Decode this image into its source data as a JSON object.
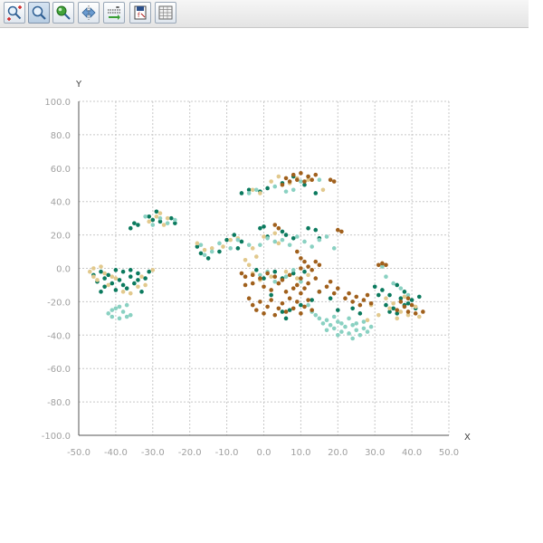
{
  "toolbar": {
    "buttons": [
      {
        "icon": "zoom-xy-icon",
        "active": false
      },
      {
        "icon": "zoom-icon",
        "active": true
      },
      {
        "icon": "pan-icon",
        "active": false
      },
      {
        "icon": "reset-zoom-icon",
        "active": false
      },
      {
        "icon": "axis-settings-icon",
        "active": false
      },
      {
        "icon": "export-icon",
        "active": false
      },
      {
        "icon": "table-icon",
        "active": false
      }
    ]
  },
  "chart_data": {
    "type": "scatter",
    "xlabel": "X",
    "ylabel": "Y",
    "xlim": [
      -50,
      50
    ],
    "ylim": [
      -100,
      100
    ],
    "grid": true,
    "x_ticks": [
      -50,
      -40,
      -30,
      -20,
      -10,
      0,
      10,
      20,
      30,
      40,
      50
    ],
    "y_ticks": [
      -100,
      -80,
      -60,
      -40,
      -20,
      0,
      20,
      40,
      60,
      80,
      100
    ],
    "x_tick_labels": [
      "-50.0",
      "-40.0",
      "-30.0",
      "-20.0",
      "-10.0",
      "0.0",
      "10.0",
      "20.0",
      "30.0",
      "40.0",
      "50.0"
    ],
    "y_tick_labels": [
      "-100.0",
      "-80.0",
      "-60.0",
      "-40.0",
      "-20.0",
      "0.0",
      "20.0",
      "40.0",
      "60.0",
      "80.0",
      "100.0"
    ],
    "series": [
      {
        "color": "#0b7a5e",
        "points": [
          [
            -46,
            -4
          ],
          [
            -45,
            -8
          ],
          [
            -44,
            -2
          ],
          [
            -43,
            -11
          ],
          [
            -43,
            -6
          ],
          [
            -42,
            -4
          ],
          [
            -41,
            -9
          ],
          [
            -40,
            -13
          ],
          [
            -39,
            -7
          ],
          [
            -38,
            -2
          ],
          [
            -37,
            -12
          ],
          [
            -36,
            -5
          ],
          [
            -36,
            -1
          ],
          [
            -35,
            -9
          ],
          [
            -34,
            -3
          ],
          [
            -33,
            -14
          ],
          [
            -32,
            -6
          ],
          [
            -31,
            -2
          ],
          [
            -44,
            -14
          ],
          [
            -40,
            -1
          ],
          [
            -34,
            -7
          ],
          [
            -38,
            -10
          ],
          [
            -36,
            24
          ],
          [
            -35,
            27
          ],
          [
            -34,
            26
          ],
          [
            -31,
            31
          ],
          [
            -30,
            29
          ],
          [
            -29,
            34
          ],
          [
            -28,
            28
          ],
          [
            -25,
            30
          ],
          [
            -24,
            27
          ],
          [
            -18,
            13
          ],
          [
            -17,
            9
          ],
          [
            -15,
            6
          ],
          [
            -12,
            10
          ],
          [
            -10,
            17
          ],
          [
            -8,
            20
          ],
          [
            -7,
            12
          ],
          [
            -6,
            16
          ],
          [
            -6,
            45
          ],
          [
            -4,
            47
          ],
          [
            -1,
            46
          ],
          [
            1,
            48
          ],
          [
            5,
            51
          ],
          [
            8,
            55
          ],
          [
            11,
            50
          ],
          [
            14,
            45
          ],
          [
            -1,
            24
          ],
          [
            0,
            25
          ],
          [
            1,
            19
          ],
          [
            5,
            22
          ],
          [
            6,
            20
          ],
          [
            8,
            18
          ],
          [
            12,
            24
          ],
          [
            14,
            23
          ],
          [
            15,
            18
          ],
          [
            -2,
            -1
          ],
          [
            0,
            -6
          ],
          [
            3,
            -2
          ],
          [
            5,
            -6
          ],
          [
            8,
            -3
          ],
          [
            11,
            -2
          ],
          [
            2,
            -16
          ],
          [
            5,
            -26
          ],
          [
            6,
            -30
          ],
          [
            7,
            -25
          ],
          [
            10,
            -22
          ],
          [
            13,
            -19
          ],
          [
            15,
            -14
          ],
          [
            18,
            -18
          ],
          [
            20,
            -25
          ],
          [
            24,
            -24
          ],
          [
            26,
            -27
          ],
          [
            30,
            -11
          ],
          [
            31,
            -16
          ],
          [
            32,
            -13
          ],
          [
            33,
            -22
          ],
          [
            34,
            -26
          ],
          [
            35,
            -24
          ],
          [
            36,
            -27
          ],
          [
            37,
            -18
          ],
          [
            38,
            -14
          ],
          [
            39,
            -21
          ],
          [
            40,
            -19
          ],
          [
            41,
            -24
          ],
          [
            42,
            -17
          ],
          [
            36,
            -10
          ],
          [
            34,
            -16
          ],
          [
            38,
            -22
          ]
        ]
      },
      {
        "color": "#e2c98d",
        "points": [
          [
            -47,
            -2
          ],
          [
            -46,
            0
          ],
          [
            -45,
            -7
          ],
          [
            -44,
            1
          ],
          [
            -43,
            -3
          ],
          [
            -42,
            -10
          ],
          [
            -41,
            -5
          ],
          [
            -38,
            -14
          ],
          [
            -36,
            -15
          ],
          [
            -34,
            -11
          ],
          [
            -33,
            -5
          ],
          [
            -32,
            -10
          ],
          [
            -30,
            -1
          ],
          [
            -46,
            -5
          ],
          [
            -40,
            -6
          ],
          [
            -31,
            28
          ],
          [
            -29,
            31
          ],
          [
            -28,
            33
          ],
          [
            -27,
            26
          ],
          [
            -26,
            30
          ],
          [
            -18,
            15
          ],
          [
            -16,
            11
          ],
          [
            -14,
            12
          ],
          [
            -11,
            13
          ],
          [
            -9,
            17
          ],
          [
            -7,
            18
          ],
          [
            -3,
            12
          ],
          [
            -2,
            7
          ],
          [
            -3,
            47
          ],
          [
            -1,
            45
          ],
          [
            2,
            52
          ],
          [
            4,
            55
          ],
          [
            7,
            51
          ],
          [
            9,
            54
          ],
          [
            12,
            53
          ],
          [
            16,
            47
          ],
          [
            -5,
            5
          ],
          [
            -4,
            2
          ],
          [
            -3,
            -3
          ],
          [
            -1,
            -7
          ],
          [
            2,
            -5
          ],
          [
            4,
            -9
          ],
          [
            6,
            -2
          ],
          [
            9,
            -6
          ],
          [
            12,
            -4
          ],
          [
            0,
            19
          ],
          [
            3,
            21
          ],
          [
            4,
            15
          ],
          [
            29,
            -22
          ],
          [
            31,
            -28
          ],
          [
            33,
            -18
          ],
          [
            34,
            -24
          ],
          [
            35,
            -21
          ],
          [
            36,
            -30
          ],
          [
            37,
            -26
          ],
          [
            38,
            -17
          ],
          [
            39,
            -28
          ],
          [
            41,
            -23
          ],
          [
            42,
            -29
          ],
          [
            28,
            -31
          ]
        ]
      },
      {
        "color": "#8ad1c2",
        "points": [
          [
            -42,
            -27
          ],
          [
            -41,
            -29
          ],
          [
            -40,
            -24
          ],
          [
            -39,
            -30
          ],
          [
            -38,
            -26
          ],
          [
            -37,
            -22
          ],
          [
            -36,
            -28
          ],
          [
            -39,
            -23
          ],
          [
            -41,
            -25
          ],
          [
            -37,
            -29
          ],
          [
            -32,
            31
          ],
          [
            -30,
            26
          ],
          [
            -28,
            30
          ],
          [
            -26,
            27
          ],
          [
            -24,
            29
          ],
          [
            -17,
            14
          ],
          [
            -16,
            8
          ],
          [
            -14,
            10
          ],
          [
            -12,
            15
          ],
          [
            -9,
            12
          ],
          [
            -7,
            17
          ],
          [
            -4,
            14
          ],
          [
            -4,
            45
          ],
          [
            -2,
            47
          ],
          [
            3,
            49
          ],
          [
            6,
            46
          ],
          [
            8,
            47
          ],
          [
            10,
            52
          ],
          [
            12,
            55
          ],
          [
            15,
            53
          ],
          [
            -1,
            14
          ],
          [
            1,
            18
          ],
          [
            3,
            16
          ],
          [
            5,
            17
          ],
          [
            7,
            14
          ],
          [
            9,
            19
          ],
          [
            11,
            16
          ],
          [
            13,
            13
          ],
          [
            15,
            17
          ],
          [
            17,
            19
          ],
          [
            19,
            12
          ],
          [
            -1,
            -4
          ],
          [
            1,
            -2
          ],
          [
            3,
            -8
          ],
          [
            6,
            -5
          ],
          [
            8,
            -1
          ],
          [
            10,
            -8
          ],
          [
            12,
            -22
          ],
          [
            13,
            -26
          ],
          [
            14,
            -28
          ],
          [
            15,
            -30
          ],
          [
            16,
            -33
          ],
          [
            17,
            -31
          ],
          [
            18,
            -34
          ],
          [
            19,
            -36
          ],
          [
            20,
            -32
          ],
          [
            21,
            -38
          ],
          [
            22,
            -35
          ],
          [
            23,
            -39
          ],
          [
            24,
            -34
          ],
          [
            25,
            -37
          ],
          [
            26,
            -40
          ],
          [
            27,
            -36
          ],
          [
            28,
            -38
          ],
          [
            29,
            -35
          ],
          [
            19,
            -29
          ],
          [
            21,
            -33
          ],
          [
            23,
            -30
          ],
          [
            25,
            -33
          ],
          [
            27,
            -32
          ],
          [
            17,
            -37
          ],
          [
            20,
            -40
          ],
          [
            24,
            -42
          ],
          [
            32,
            1
          ],
          [
            33,
            -5
          ],
          [
            35,
            -9
          ],
          [
            37,
            -12
          ],
          [
            39,
            -16
          ]
        ]
      },
      {
        "color": "#a0601c",
        "points": [
          [
            -6,
            -3
          ],
          [
            -5,
            -5
          ],
          [
            -3,
            -4
          ],
          [
            -1,
            -6
          ],
          [
            1,
            -3
          ],
          [
            3,
            -5
          ],
          [
            5,
            -7
          ],
          [
            7,
            -4
          ],
          [
            9,
            -10
          ],
          [
            10,
            -6
          ],
          [
            11,
            -12
          ],
          [
            12,
            -9
          ],
          [
            14,
            -6
          ],
          [
            15,
            -14
          ],
          [
            17,
            -11
          ],
          [
            18,
            -8
          ],
          [
            19,
            -15
          ],
          [
            20,
            -12
          ],
          [
            -5,
            -10
          ],
          [
            -3,
            -9
          ],
          [
            0,
            -11
          ],
          [
            2,
            -13
          ],
          [
            4,
            -9
          ],
          [
            6,
            -14
          ],
          [
            8,
            -12
          ],
          [
            10,
            -15
          ],
          [
            -4,
            -18
          ],
          [
            -3,
            -22
          ],
          [
            -2,
            -25
          ],
          [
            -1,
            -20
          ],
          [
            0,
            -27
          ],
          [
            1,
            -23
          ],
          [
            2,
            -19
          ],
          [
            3,
            -28
          ],
          [
            4,
            -24
          ],
          [
            5,
            -21
          ],
          [
            6,
            -26
          ],
          [
            7,
            -18
          ],
          [
            8,
            -24
          ],
          [
            9,
            -20
          ],
          [
            10,
            -27
          ],
          [
            11,
            -23
          ],
          [
            12,
            -19
          ],
          [
            13,
            -25
          ],
          [
            5,
            50
          ],
          [
            6,
            54
          ],
          [
            7,
            52
          ],
          [
            8,
            56
          ],
          [
            9,
            53
          ],
          [
            10,
            57
          ],
          [
            11,
            52
          ],
          [
            12,
            55
          ],
          [
            13,
            53
          ],
          [
            14,
            56
          ],
          [
            18,
            53
          ],
          [
            19,
            52
          ],
          [
            3,
            26
          ],
          [
            4,
            24
          ],
          [
            9,
            10
          ],
          [
            10,
            6
          ],
          [
            11,
            4
          ],
          [
            12,
            1
          ],
          [
            13,
            -1
          ],
          [
            14,
            4
          ],
          [
            15,
            2
          ],
          [
            10,
            0
          ],
          [
            20,
            23
          ],
          [
            21,
            22
          ],
          [
            22,
            -18
          ],
          [
            23,
            -15
          ],
          [
            24,
            -20
          ],
          [
            25,
            -17
          ],
          [
            26,
            -22
          ],
          [
            27,
            -19
          ],
          [
            28,
            -16
          ],
          [
            29,
            -21
          ],
          [
            31,
            2
          ],
          [
            32,
            3
          ],
          [
            33,
            2
          ],
          [
            36,
            -25
          ],
          [
            37,
            -20
          ],
          [
            38,
            -23
          ],
          [
            39,
            -26
          ],
          [
            40,
            -22
          ],
          [
            41,
            -27
          ],
          [
            43,
            -26
          ],
          [
            39,
            -18
          ]
        ]
      }
    ]
  }
}
